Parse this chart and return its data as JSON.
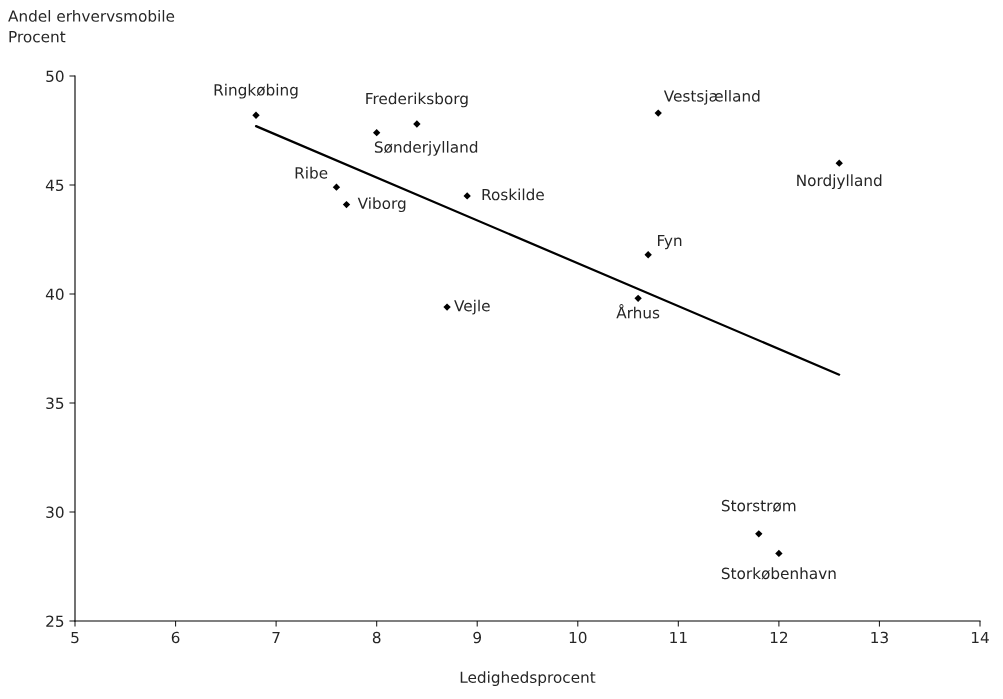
{
  "chart_data": {
    "type": "scatter",
    "xlabel": "Ledighedsprocent",
    "ylabel": "Andel erhvervsmobile\nProcent",
    "xlim": [
      5,
      14
    ],
    "xticks": [
      5,
      6,
      7,
      8,
      9,
      10,
      11,
      12,
      13,
      14
    ],
    "ylim": [
      25,
      50
    ],
    "yticks": [
      25,
      30,
      35,
      40,
      45,
      50
    ],
    "grid": false,
    "legend": false,
    "series": [
      {
        "marker": "diamond",
        "color": "#000000",
        "x": [
          6.8,
          8.4,
          8.0,
          10.8,
          12.6,
          7.6,
          7.7,
          8.9,
          10.7,
          10.6,
          8.7,
          11.8,
          12.0
        ],
        "values": [
          48.2,
          47.8,
          47.4,
          48.3,
          46.0,
          44.9,
          44.1,
          44.5,
          41.8,
          39.8,
          39.4,
          29.0,
          28.1
        ]
      },
      {
        "type": "line",
        "marker": "none",
        "color": "#000000",
        "x": [
          6.8,
          12.6
        ],
        "values": [
          47.7,
          36.3
        ]
      }
    ],
    "annotations": [
      {
        "text": "Ringkøbing",
        "x": 6.8,
        "y": 48.2
      },
      {
        "text": "Frederiksborg",
        "x": 8.4,
        "y": 47.8
      },
      {
        "text": "Sønderjylland",
        "x": 8.0,
        "y": 47.4
      },
      {
        "text": "Vestsjælland",
        "x": 10.8,
        "y": 48.3
      },
      {
        "text": "Nordjylland",
        "x": 12.6,
        "y": 46.0
      },
      {
        "text": "Ribe",
        "x": 7.6,
        "y": 44.9
      },
      {
        "text": "Viborg",
        "x": 7.7,
        "y": 44.1
      },
      {
        "text": "Roskilde",
        "x": 8.9,
        "y": 44.5
      },
      {
        "text": "Fyn",
        "x": 10.7,
        "y": 41.8
      },
      {
        "text": "Århus",
        "x": 10.6,
        "y": 39.8
      },
      {
        "text": "Vejle",
        "x": 8.7,
        "y": 39.4
      },
      {
        "text": "Storstrøm",
        "x": 11.8,
        "y": 29.0
      },
      {
        "text": "Storkøbenhavn",
        "x": 12.0,
        "y": 28.1
      }
    ]
  }
}
